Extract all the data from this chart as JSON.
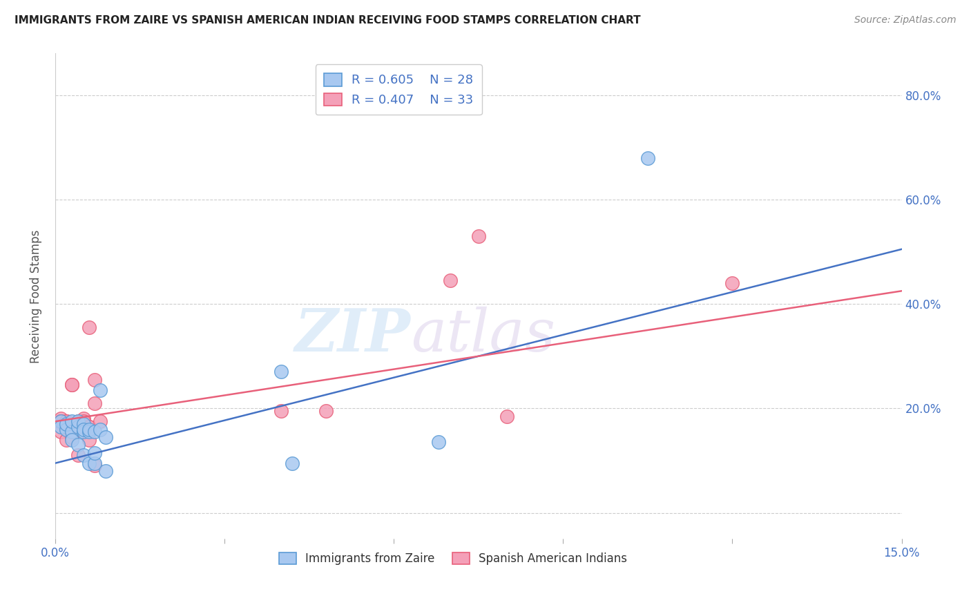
{
  "title": "IMMIGRANTS FROM ZAIRE VS SPANISH AMERICAN INDIAN RECEIVING FOOD STAMPS CORRELATION CHART",
  "source": "Source: ZipAtlas.com",
  "ylabel": "Receiving Food Stamps",
  "xlim": [
    0.0,
    0.15
  ],
  "ylim": [
    -0.05,
    0.88
  ],
  "xticks": [
    0.0,
    0.03,
    0.06,
    0.09,
    0.12,
    0.15
  ],
  "yticks": [
    0.0,
    0.2,
    0.4,
    0.6,
    0.8
  ],
  "right_yticklabels": [
    "",
    "20.0%",
    "40.0%",
    "60.0%",
    "80.0%"
  ],
  "blue_color": "#A8C8F0",
  "pink_color": "#F4A0B8",
  "blue_edge_color": "#5B9BD5",
  "pink_edge_color": "#E8607A",
  "blue_line_color": "#4472C4",
  "pink_line_color": "#E8607A",
  "legend_R1": "R = 0.605",
  "legend_N1": "N = 28",
  "legend_R2": "R = 0.407",
  "legend_N2": "N = 33",
  "series1_label": "Immigrants from Zaire",
  "series2_label": "Spanish American Indians",
  "blue_x": [
    0.001,
    0.001,
    0.002,
    0.002,
    0.003,
    0.003,
    0.003,
    0.004,
    0.004,
    0.004,
    0.005,
    0.005,
    0.005,
    0.005,
    0.006,
    0.006,
    0.006,
    0.007,
    0.007,
    0.007,
    0.008,
    0.008,
    0.009,
    0.009,
    0.04,
    0.042,
    0.068,
    0.105
  ],
  "blue_y": [
    0.175,
    0.165,
    0.16,
    0.17,
    0.155,
    0.175,
    0.14,
    0.165,
    0.13,
    0.175,
    0.17,
    0.155,
    0.11,
    0.16,
    0.155,
    0.16,
    0.095,
    0.155,
    0.095,
    0.115,
    0.16,
    0.235,
    0.145,
    0.08,
    0.27,
    0.095,
    0.135,
    0.68
  ],
  "pink_x": [
    0.001,
    0.001,
    0.001,
    0.002,
    0.002,
    0.002,
    0.002,
    0.003,
    0.003,
    0.003,
    0.003,
    0.003,
    0.004,
    0.004,
    0.004,
    0.004,
    0.005,
    0.005,
    0.005,
    0.006,
    0.006,
    0.006,
    0.006,
    0.007,
    0.007,
    0.007,
    0.008,
    0.04,
    0.048,
    0.07,
    0.075,
    0.08,
    0.12
  ],
  "pink_y": [
    0.18,
    0.175,
    0.155,
    0.175,
    0.165,
    0.175,
    0.14,
    0.165,
    0.245,
    0.245,
    0.155,
    0.145,
    0.175,
    0.165,
    0.165,
    0.11,
    0.18,
    0.165,
    0.175,
    0.355,
    0.165,
    0.165,
    0.14,
    0.255,
    0.21,
    0.09,
    0.175,
    0.195,
    0.195,
    0.445,
    0.53,
    0.185,
    0.44
  ],
  "blue_trend_x": [
    0.0,
    0.15
  ],
  "blue_trend_y": [
    0.095,
    0.505
  ],
  "pink_trend_x": [
    0.0,
    0.15
  ],
  "pink_trend_y": [
    0.175,
    0.425
  ],
  "watermark_zip": "ZIP",
  "watermark_atlas": "atlas",
  "background_color": "#FFFFFF",
  "grid_color": "#CCCCCC"
}
